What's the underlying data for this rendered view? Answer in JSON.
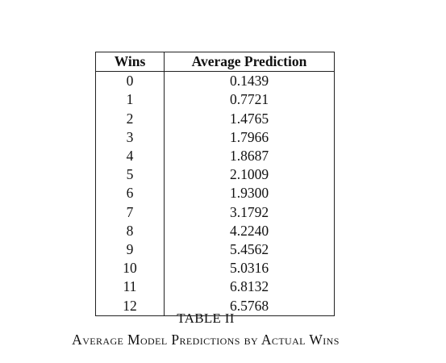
{
  "table": {
    "headers": {
      "wins": "Wins",
      "prediction": "Average Prediction"
    },
    "rows": [
      {
        "wins": "0",
        "prediction": "0.1439"
      },
      {
        "wins": "1",
        "prediction": "0.7721"
      },
      {
        "wins": "2",
        "prediction": "1.4765"
      },
      {
        "wins": "3",
        "prediction": "1.7966"
      },
      {
        "wins": "4",
        "prediction": "1.8687"
      },
      {
        "wins": "5",
        "prediction": "2.1009"
      },
      {
        "wins": "6",
        "prediction": "1.9300"
      },
      {
        "wins": "7",
        "prediction": "3.1792"
      },
      {
        "wins": "8",
        "prediction": "4.2240"
      },
      {
        "wins": "9",
        "prediction": "5.4562"
      },
      {
        "wins": "10",
        "prediction": "5.0316"
      },
      {
        "wins": "11",
        "prediction": "6.8132"
      },
      {
        "wins": "12",
        "prediction": "6.5768"
      }
    ]
  },
  "caption": {
    "label": "TABLE II",
    "title": "Average Model Predictions by Actual Wins"
  }
}
